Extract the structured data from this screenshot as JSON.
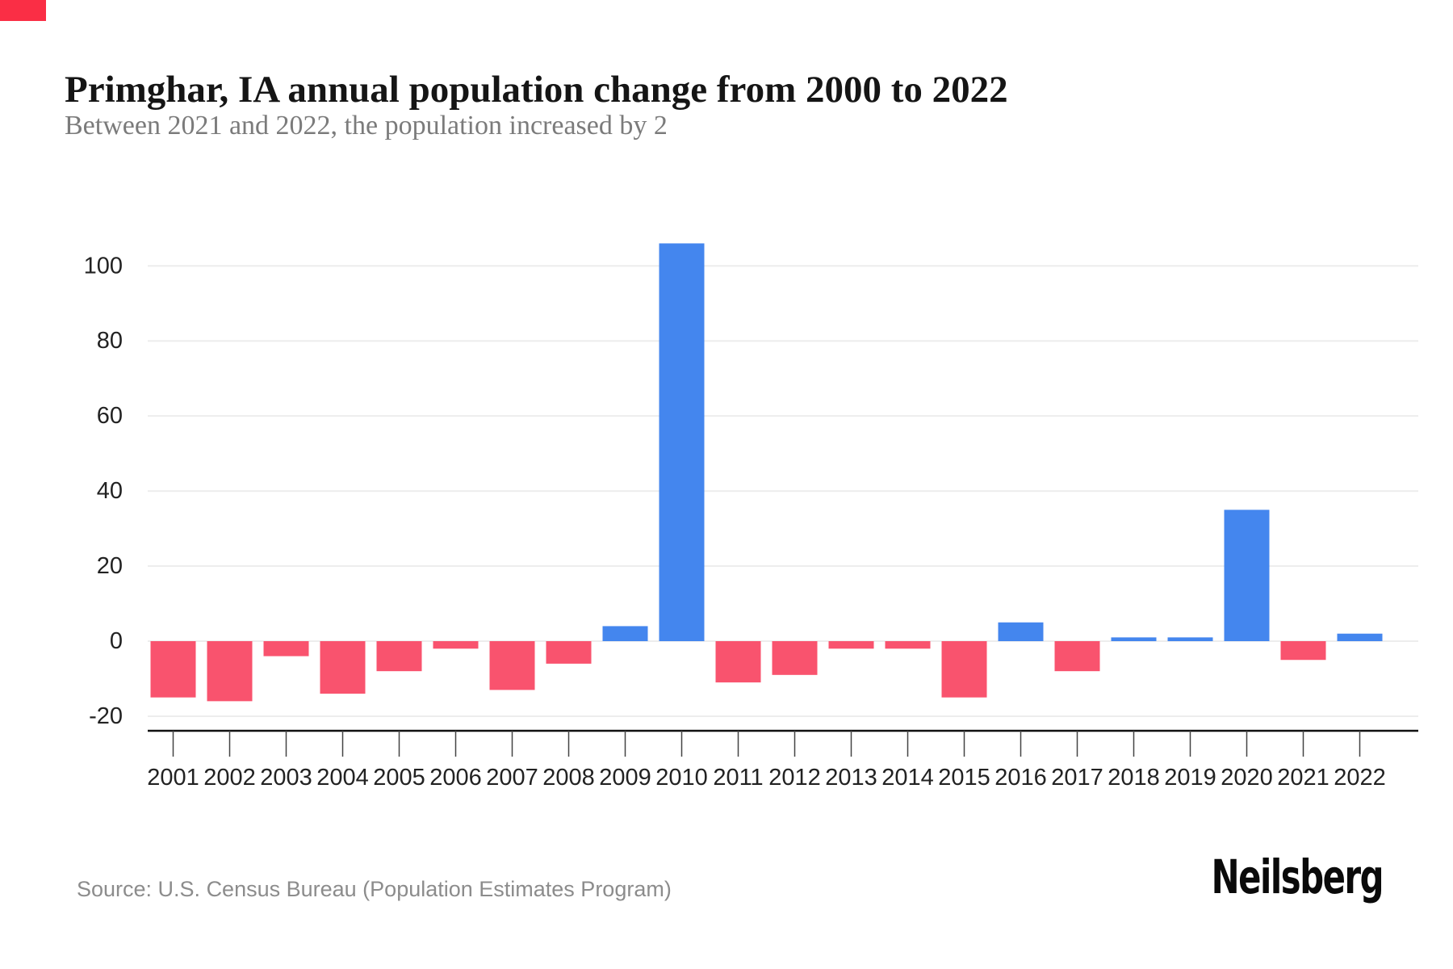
{
  "page": {
    "title": "Primghar, IA annual population change from 2000 to 2022",
    "subtitle": "Between 2021 and 2022, the population increased by 2",
    "source": "Source: U.S. Census Bureau (Population Estimates Program)",
    "brand": "Neilsberg"
  },
  "colors": {
    "positive_bar": "#4486ee",
    "negative_bar": "#f9536e",
    "gridline": "#ededed",
    "axis_line": "#111111",
    "tick_mark": "#444444",
    "corner_accent": "#fa2e45"
  },
  "chart_data": {
    "type": "bar",
    "title": "Primghar, IA annual population change from 2000 to 2022",
    "subtitle": "Between 2021 and 2022, the population increased by 2",
    "xlabel": "",
    "ylabel": "",
    "categories": [
      "2001",
      "2002",
      "2003",
      "2004",
      "2005",
      "2006",
      "2007",
      "2008",
      "2009",
      "2010",
      "2011",
      "2012",
      "2013",
      "2014",
      "2015",
      "2016",
      "2017",
      "2018",
      "2019",
      "2020",
      "2021",
      "2022"
    ],
    "values": [
      -15,
      -16,
      -4,
      -14,
      -8,
      -2,
      -13,
      -6,
      4,
      106,
      -11,
      -9,
      -2,
      -2,
      -15,
      5,
      -8,
      1,
      1,
      35,
      -5,
      2
    ],
    "ylim": [
      -20,
      110
    ],
    "yticks": [
      -20,
      0,
      20,
      40,
      60,
      80,
      100
    ],
    "grid": "horizontal",
    "legend": "none"
  }
}
